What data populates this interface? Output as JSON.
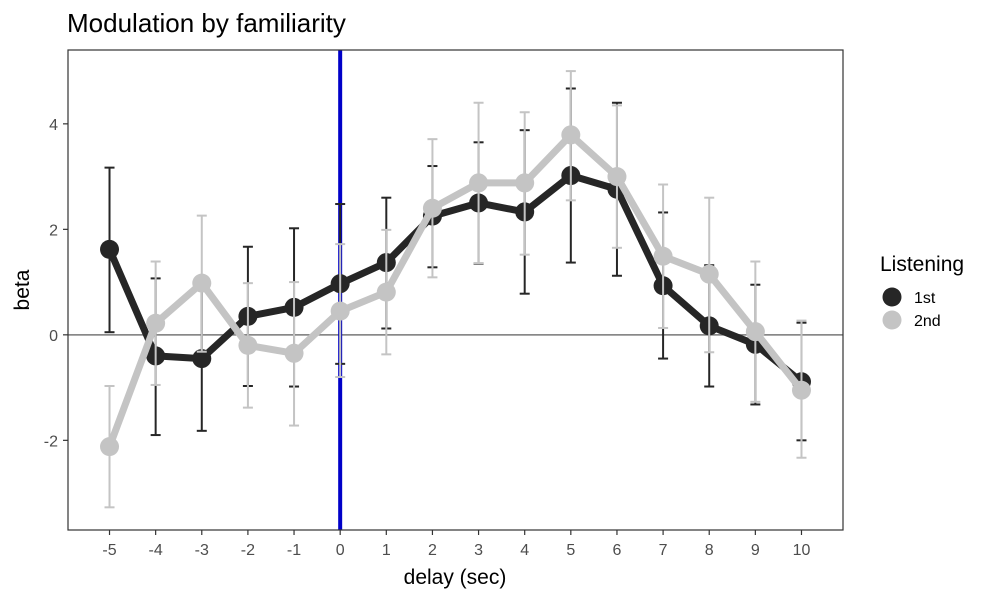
{
  "chart_data": {
    "type": "line",
    "title": "Modulation by familiarity",
    "xlabel": "delay (sec)",
    "ylabel": "beta",
    "x": [
      -5,
      -4,
      -3,
      -2,
      -1,
      0,
      1,
      2,
      3,
      4,
      5,
      6,
      7,
      8,
      9,
      10
    ],
    "xticks": [
      "-5",
      "-4",
      "-3",
      "-2",
      "-1",
      "0",
      "1",
      "2",
      "3",
      "4",
      "5",
      "6",
      "7",
      "8",
      "9",
      "10"
    ],
    "yticks": [
      {
        "value": -2,
        "label": "-2"
      },
      {
        "value": 0,
        "label": "0"
      },
      {
        "value": 2,
        "label": "2"
      },
      {
        "value": 4,
        "label": "4"
      }
    ],
    "xlim": [
      -5.9,
      10.9
    ],
    "ylim": [
      -3.7,
      5.4
    ],
    "hline": 0,
    "vline": 0,
    "legend": {
      "title": "Listening",
      "position": "right"
    },
    "series": [
      {
        "name": "1st",
        "color": "#262626",
        "values": [
          1.62,
          -0.4,
          -0.45,
          0.35,
          0.52,
          0.97,
          1.37,
          2.25,
          2.5,
          2.33,
          3.02,
          2.76,
          0.93,
          0.17,
          -0.18,
          -0.89
        ],
        "err_low": [
          0.05,
          -1.9,
          -1.82,
          -0.97,
          -0.98,
          -0.55,
          0.12,
          1.28,
          1.35,
          0.78,
          1.37,
          1.12,
          -0.45,
          -0.98,
          -1.32,
          -2.0
        ],
        "err_high": [
          3.17,
          1.07,
          0.93,
          1.67,
          2.02,
          2.48,
          2.6,
          3.2,
          3.65,
          3.88,
          4.67,
          4.4,
          2.32,
          1.32,
          0.95,
          0.23
        ]
      },
      {
        "name": "2nd",
        "color": "#c4c4c4",
        "values": [
          -2.12,
          0.22,
          0.98,
          -0.2,
          -0.35,
          0.45,
          0.81,
          2.4,
          2.88,
          2.88,
          3.79,
          3.0,
          1.49,
          1.15,
          0.06,
          -1.05
        ],
        "err_low": [
          -3.27,
          -0.95,
          -0.32,
          -1.38,
          -1.72,
          -0.8,
          -0.37,
          1.09,
          1.36,
          1.52,
          2.55,
          1.65,
          0.13,
          -0.33,
          -1.27,
          -2.33
        ],
        "err_high": [
          -0.97,
          1.39,
          2.26,
          0.98,
          1.0,
          1.72,
          1.99,
          3.71,
          4.4,
          4.22,
          5.0,
          4.35,
          2.85,
          2.6,
          1.39,
          0.27
        ]
      }
    ]
  }
}
